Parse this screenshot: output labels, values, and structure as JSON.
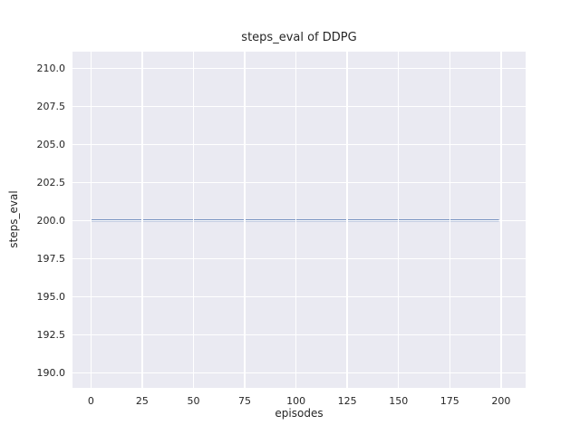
{
  "chart_data": {
    "type": "line",
    "title": "steps_eval of DDPG",
    "xlabel": "episodes",
    "ylabel": "steps_eval",
    "xlim": [
      -9,
      212
    ],
    "ylim": [
      189.0,
      211.1
    ],
    "grid": true,
    "legend": "none",
    "plot_background_color": "#EAEAF2",
    "grid_color": "#FFFFFF",
    "figure_background_color": "#FFFFFF",
    "text_color": "#262626",
    "xticks": [
      {
        "value": 0,
        "label": "0"
      },
      {
        "value": 25,
        "label": "25"
      },
      {
        "value": 50,
        "label": "50"
      },
      {
        "value": 75,
        "label": "75"
      },
      {
        "value": 100,
        "label": "100"
      },
      {
        "value": 125,
        "label": "125"
      },
      {
        "value": 150,
        "label": "150"
      },
      {
        "value": 175,
        "label": "175"
      },
      {
        "value": 200,
        "label": "200"
      }
    ],
    "yticks": [
      {
        "value": 190.0,
        "label": "190.0"
      },
      {
        "value": 192.5,
        "label": "192.5"
      },
      {
        "value": 195.0,
        "label": "195.0"
      },
      {
        "value": 197.5,
        "label": "197.5"
      },
      {
        "value": 200.0,
        "label": "200.0"
      },
      {
        "value": 202.5,
        "label": "202.5"
      },
      {
        "value": 205.0,
        "label": "205.0"
      },
      {
        "value": 207.5,
        "label": "207.5"
      },
      {
        "value": 210.0,
        "label": "210.0"
      }
    ],
    "series": [
      {
        "name": "DDPG steps_eval",
        "color": "#4C72B0",
        "line_width": 2,
        "x": [
          0,
          199
        ],
        "y": [
          200,
          200
        ]
      }
    ]
  }
}
